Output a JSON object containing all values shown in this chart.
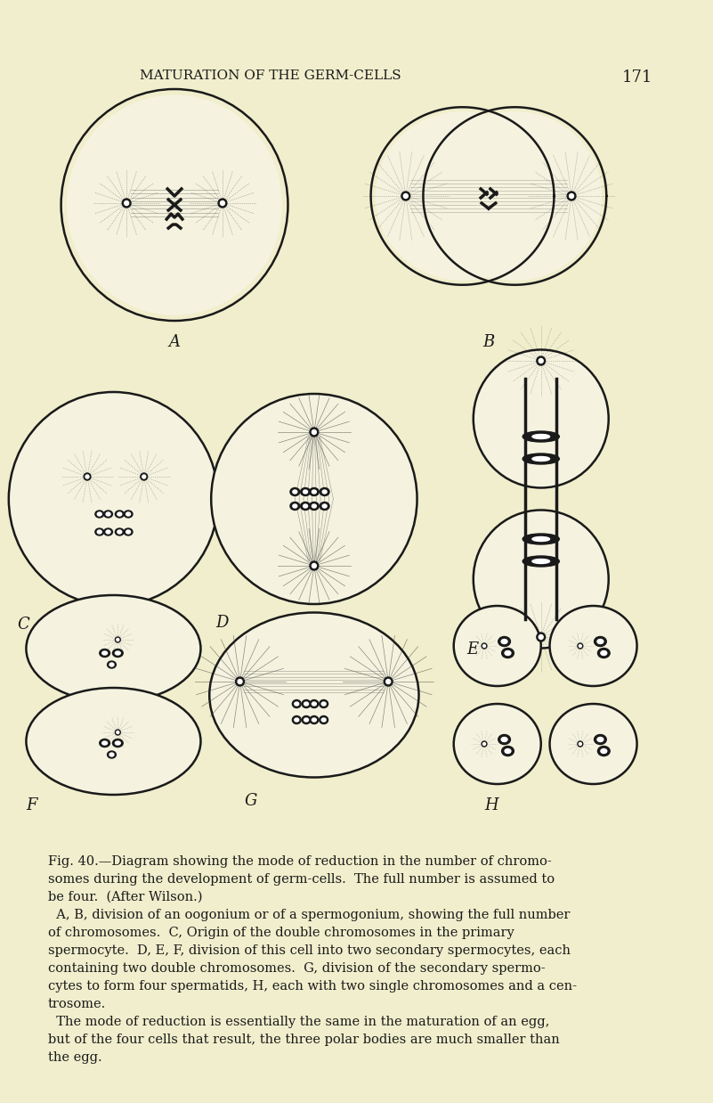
{
  "bg_color": "#f0eecc",
  "line_color": "#1a1a1a",
  "title": "MATURATION OF THE GERM-CELLS",
  "page_num": "171",
  "caption_lines": [
    "Fig. 40.—Diagram showing the mode of reduction in the number of chromo-",
    "somes during the development of germ-cells.  The full number is assumed to",
    "be four.  (After Wilson.)",
    "  A, B, division of an oogonium or of a spermogonium, showing the full number",
    "of chromosomes.  C, Origin of the double chromosomes in the primary",
    "spermocyte.  D, E, F, division of this cell into two secondary spermocytes, each",
    "containing two double chromosomes.  G, division of the secondary spermo-",
    "cytes to form four spermatids, H, each with two single chromosomes and a cen-",
    "trosome.",
    "  The mode of reduction is essentially the same in the maturation of an egg,",
    "but of the four cells that result, the three polar bodies are much smaller than",
    "the egg."
  ]
}
